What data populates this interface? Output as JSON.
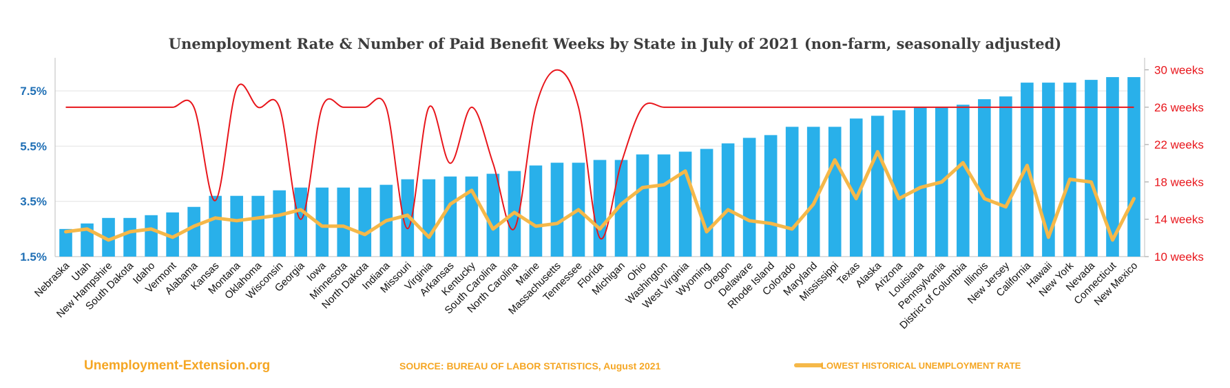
{
  "chart_data": {
    "type": "bar",
    "title": "Unemployment Rate & Number of Paid Benefit Weeks by State in July of 2021 (non-farm, seasonally adjusted)",
    "categories": [
      "Nebraska",
      "Utah",
      "New Hampshire",
      "South Dakota",
      "Idaho",
      "Vermont",
      "Alabama",
      "Kansas",
      "Montana",
      "Oklahoma",
      "Wisconsin",
      "Georgia",
      "Iowa",
      "Minnesota",
      "North Dakota",
      "Indiana",
      "Missouri",
      "Virginia",
      "Arkansas",
      "Kentucky",
      "South Carolina",
      "North Carolina",
      "Maine",
      "Massachusetts",
      "Tennessee",
      "Florida",
      "Michigan",
      "Ohio",
      "Washington",
      "West Virginia",
      "Wyoming",
      "Oregon",
      "Delaware",
      "Rhode Island",
      "Colorado",
      "Maryland",
      "Mississippi",
      "Texas",
      "Alaska",
      "Arizona",
      "Louisiana",
      "Pennsylvania",
      "District of Columbia",
      "Illinois",
      "New Jersey",
      "California",
      "Hawaii",
      "New York",
      "Nevada",
      "Connecticut",
      "New Mexico"
    ],
    "series": [
      {
        "name": "Unemployment Rate (July 2021)",
        "axis": "left",
        "color": "#29b0ea",
        "values": [
          2.5,
          2.7,
          2.9,
          2.9,
          3.0,
          3.1,
          3.3,
          3.7,
          3.7,
          3.7,
          3.9,
          4.0,
          4.0,
          4.0,
          4.0,
          4.1,
          4.3,
          4.3,
          4.4,
          4.4,
          4.5,
          4.6,
          4.8,
          4.9,
          4.9,
          5.0,
          5.0,
          5.2,
          5.2,
          5.3,
          5.4,
          5.6,
          5.8,
          5.9,
          6.2,
          6.2,
          6.2,
          6.5,
          6.6,
          6.8,
          6.9,
          6.9,
          7.0,
          7.2,
          7.3,
          7.8,
          7.8,
          7.8,
          7.9,
          8.0,
          8.0
        ]
      },
      {
        "name": "Number of Paid Benefit Weeks",
        "axis": "right",
        "color": "#e8151b",
        "values": [
          26,
          26,
          26,
          26,
          26,
          26,
          26,
          16,
          28,
          26,
          26,
          14,
          26,
          26,
          26,
          26,
          13,
          26,
          20,
          26,
          20,
          13,
          26,
          30,
          26,
          12,
          20,
          26,
          26,
          26,
          26,
          26,
          26,
          26,
          26,
          26,
          26,
          26,
          26,
          26,
          26,
          26,
          26,
          26,
          26,
          26,
          26,
          26,
          26,
          26,
          26
        ]
      },
      {
        "name": "LOWEST HISTORICAL UNEMPLOYMENT RATE",
        "axis": "left",
        "color": "#f5b849",
        "values": [
          2.4,
          2.5,
          2.1,
          2.4,
          2.5,
          2.2,
          2.6,
          2.9,
          2.8,
          2.9,
          3.0,
          3.2,
          2.6,
          2.6,
          2.3,
          2.8,
          3.0,
          2.2,
          3.4,
          3.9,
          2.5,
          3.1,
          2.6,
          2.7,
          3.2,
          2.5,
          3.4,
          4.0,
          4.1,
          4.6,
          2.4,
          3.2,
          2.8,
          2.7,
          2.5,
          3.4,
          5.0,
          3.6,
          5.3,
          3.6,
          4.0,
          4.2,
          4.9,
          3.6,
          3.3,
          4.8,
          2.2,
          4.3,
          4.2,
          2.1,
          3.6
        ]
      }
    ],
    "ylim_left": [
      1.5,
      8.6
    ],
    "ylim_right": [
      10,
      31
    ],
    "yticks_left": [
      1.5,
      3.5,
      5.5,
      7.5
    ],
    "yticks_left_labels": [
      "1.5%",
      "3.5%",
      "5.5%",
      "7.5%"
    ],
    "yticks_right": [
      10,
      14,
      18,
      22,
      26,
      30
    ],
    "yticks_right_labels": [
      "10 weeks",
      "14 weeks",
      "18 weeks",
      "22 weeks",
      "26 weeks",
      "30 weeks"
    ],
    "xlabel": "",
    "ylabel": "",
    "grid": true,
    "legend": "bottom-right"
  },
  "footer": {
    "brand": "Unemployment-Extension.org",
    "source": "SOURCE: BUREAU OF LABOR STATISTICS, August 2021",
    "legend_label": "LOWEST HISTORICAL UNEMPLOYMENT RATE"
  },
  "colors": {
    "bar": "#29b0ea",
    "weeks_line": "#e8151b",
    "lowest_line": "#f5b849",
    "left_axis_text": "#1f6fb5",
    "right_axis_text": "#e8151b",
    "footer_text": "#f5a623"
  }
}
